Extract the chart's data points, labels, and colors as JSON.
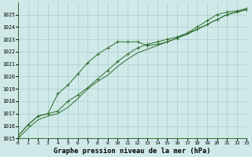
{
  "title": "Graphe pression niveau de la mer (hPa)",
  "background_color": "#cfe8e8",
  "grid_color": "#aacccc",
  "line_color": "#2d6e2d",
  "xlim": [
    0,
    23
  ],
  "ylim": [
    1015,
    1026
  ],
  "xticks": [
    0,
    1,
    2,
    3,
    4,
    5,
    6,
    7,
    8,
    9,
    10,
    11,
    12,
    13,
    14,
    15,
    16,
    17,
    18,
    19,
    20,
    21,
    22,
    23
  ],
  "yticks": [
    1015,
    1016,
    1017,
    1018,
    1019,
    1020,
    1021,
    1022,
    1023,
    1024,
    1025
  ],
  "series1_x": [
    0,
    1,
    2,
    3,
    4,
    5,
    6,
    7,
    8,
    9,
    10,
    11,
    12,
    13,
    14,
    15,
    16,
    17,
    18,
    19,
    20,
    21,
    22,
    23
  ],
  "series1_y": [
    1015.2,
    1016.1,
    1016.8,
    1017.0,
    1018.6,
    1019.3,
    1020.2,
    1021.1,
    1021.8,
    1022.3,
    1022.8,
    1022.8,
    1022.8,
    1022.5,
    1022.6,
    1022.8,
    1023.1,
    1023.5,
    1024.0,
    1024.5,
    1025.0,
    1025.2,
    1025.3,
    1025.5
  ],
  "series2_x": [
    0,
    1,
    2,
    3,
    4,
    5,
    6,
    7,
    8,
    9,
    10,
    11,
    12,
    13,
    14,
    15,
    16,
    17,
    18,
    19,
    20,
    21,
    22,
    23
  ],
  "series2_y": [
    1015.2,
    1016.1,
    1016.8,
    1017.0,
    1017.2,
    1018.0,
    1018.5,
    1019.1,
    1019.8,
    1020.5,
    1021.2,
    1021.8,
    1022.3,
    1022.6,
    1022.8,
    1023.0,
    1023.2,
    1023.5,
    1023.8,
    1024.2,
    1024.6,
    1025.0,
    1025.2,
    1025.4
  ],
  "series3_x": [
    0,
    1,
    2,
    3,
    4,
    5,
    6,
    7,
    8,
    9,
    10,
    11,
    12,
    13,
    14,
    15,
    16,
    17,
    18,
    19,
    20,
    21,
    22,
    23
  ],
  "series3_y": [
    1015.0,
    1015.8,
    1016.5,
    1016.8,
    1017.0,
    1017.5,
    1018.2,
    1019.0,
    1019.6,
    1020.1,
    1020.8,
    1021.4,
    1021.9,
    1022.2,
    1022.5,
    1022.8,
    1023.1,
    1023.4,
    1023.8,
    1024.2,
    1024.6,
    1025.0,
    1025.2,
    1025.4
  ]
}
